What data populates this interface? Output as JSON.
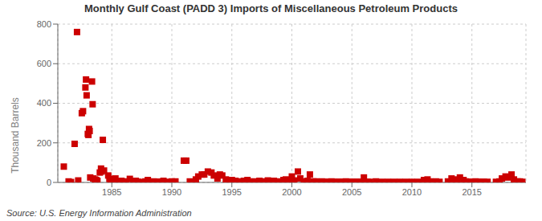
{
  "chart_data": {
    "type": "scatter",
    "title": "Monthly Gulf Coast (PADD 3) Imports of Miscellaneous Petroleum Products",
    "ylabel": "Thousand Barrels",
    "annotations": [
      "Source: U.S. Energy Information Administration"
    ],
    "color": "#cc0000",
    "marker": "square",
    "grid": true,
    "xlim": [
      1980.5,
      2019.5
    ],
    "xticks": [
      1985,
      1990,
      1995,
      2000,
      2005,
      2010,
      2015
    ],
    "ylim": [
      0,
      800
    ],
    "yticks": [
      0,
      200,
      400,
      600,
      800
    ],
    "x": [
      1981.0,
      1981.4,
      1981.6,
      1981.9,
      1982.1,
      1982.2,
      1982.5,
      1982.6,
      1982.8,
      1982.85,
      1982.9,
      1983.0,
      1983.05,
      1983.1,
      1983.15,
      1983.2,
      1983.35,
      1983.4,
      1983.45,
      1983.6,
      1983.7,
      1983.8,
      1984.0,
      1984.1,
      1984.15,
      1984.25,
      1984.35,
      1984.7,
      1984.8,
      1984.9,
      1985.1,
      1985.3,
      1985.5,
      1985.8,
      1986.0,
      1986.2,
      1986.5,
      1986.8,
      1987.0,
      1987.2,
      1987.5,
      1987.8,
      1988.0,
      1988.3,
      1988.5,
      1988.8,
      1989.0,
      1989.3,
      1989.6,
      1990.0,
      1990.3,
      1991.0,
      1991.2,
      1991.5,
      1991.8,
      1992.0,
      1992.2,
      1992.5,
      1992.7,
      1993.0,
      1993.3,
      1993.5,
      1993.8,
      1994.0,
      1994.2,
      1994.5,
      1994.8,
      1994.9,
      1995.0,
      1995.3,
      1995.5,
      1995.8,
      1996.0,
      1996.3,
      1996.5,
      1996.8,
      1997.0,
      1997.3,
      1997.5,
      1997.8,
      1998.0,
      1998.3,
      1998.5,
      1998.8,
      1999.0,
      1999.3,
      1999.5,
      1999.8,
      2000.0,
      2000.2,
      2000.5,
      2000.7,
      2001.0,
      2001.3,
      2001.5,
      2001.8,
      2002.0,
      2002.3,
      2002.5,
      2002.8,
      2003.0,
      2003.3,
      2003.5,
      2003.8,
      2004.0,
      2004.3,
      2004.5,
      2004.8,
      2005.0,
      2005.3,
      2005.5,
      2005.8,
      2006.0,
      2006.3,
      2006.5,
      2007.0,
      2007.5,
      2008.0,
      2008.5,
      2009.0,
      2009.5,
      2010.0,
      2010.5,
      2011.0,
      2011.3,
      2011.5,
      2011.8,
      2012.0,
      2012.3,
      2013.0,
      2013.3,
      2013.5,
      2013.8,
      2014.0,
      2014.3,
      2014.5,
      2014.8,
      2015.0,
      2015.3,
      2015.5,
      2015.8,
      2016.0,
      2016.3,
      2017.0,
      2017.3,
      2017.5,
      2017.8,
      2018.0,
      2018.3,
      2018.5,
      2018.8,
      2019.0,
      2019.2
    ],
    "values": [
      80,
      5,
      2,
      195,
      760,
      10,
      350,
      360,
      480,
      520,
      440,
      245,
      240,
      270,
      260,
      25,
      510,
      395,
      20,
      15,
      12,
      8,
      50,
      70,
      55,
      215,
      60,
      35,
      18,
      10,
      12,
      20,
      5,
      8,
      5,
      3,
      18,
      5,
      8,
      3,
      2,
      5,
      12,
      3,
      5,
      2,
      4,
      8,
      3,
      5,
      5,
      110,
      110,
      5,
      3,
      15,
      30,
      40,
      40,
      55,
      50,
      35,
      20,
      40,
      35,
      15,
      5,
      5,
      12,
      8,
      5,
      3,
      8,
      12,
      5,
      3,
      5,
      8,
      3,
      5,
      10,
      5,
      8,
      3,
      5,
      12,
      15,
      8,
      30,
      10,
      55,
      20,
      5,
      8,
      40,
      5,
      5,
      3,
      5,
      3,
      3,
      5,
      3,
      3,
      3,
      3,
      5,
      3,
      3,
      3,
      3,
      3,
      25,
      3,
      3,
      5,
      3,
      3,
      3,
      3,
      3,
      3,
      3,
      12,
      15,
      5,
      3,
      5,
      3,
      5,
      20,
      15,
      5,
      25,
      12,
      5,
      3,
      3,
      5,
      3,
      3,
      3,
      3,
      3,
      5,
      20,
      30,
      25,
      40,
      15,
      5,
      5,
      3
    ]
  }
}
